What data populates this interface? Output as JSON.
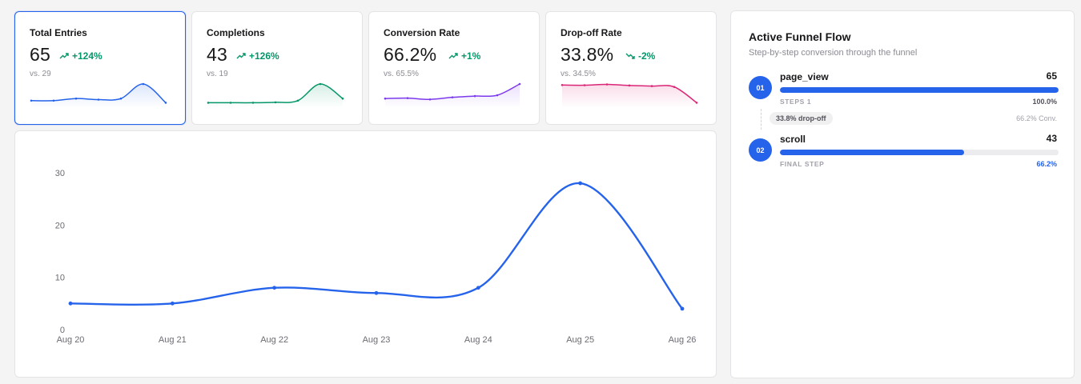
{
  "kpis": [
    {
      "label": "Total Entries",
      "value": "65",
      "delta": "+124%",
      "trend": "up",
      "compare": "vs. 29",
      "color": "#2563eb",
      "delta_color": "#059669",
      "active": true,
      "spark": [
        2,
        2,
        3,
        2.5,
        3,
        10,
        1
      ]
    },
    {
      "label": "Completions",
      "value": "43",
      "delta": "+126%",
      "trend": "up",
      "compare": "vs. 19",
      "color": "#059669",
      "delta_color": "#059669",
      "active": false,
      "spark": [
        1,
        1,
        1,
        1.2,
        2,
        10,
        3
      ]
    },
    {
      "label": "Conversion Rate",
      "value": "66.2%",
      "delta": "+1%",
      "trend": "up",
      "compare": "vs. 65.5%",
      "color": "#7c3aed",
      "delta_color": "#059669",
      "active": false,
      "spark": [
        3,
        3.2,
        2.6,
        3.6,
        4.2,
        4.6,
        10
      ]
    },
    {
      "label": "Drop-off Rate",
      "value": "33.8%",
      "delta": "-2%",
      "trend": "down",
      "compare": "vs. 34.5%",
      "color": "#db2777",
      "delta_color": "#059669",
      "active": false,
      "spark": [
        9.5,
        9.4,
        9.8,
        9.3,
        9,
        8.6,
        1
      ]
    }
  ],
  "chart_data": {
    "type": "line",
    "x": [
      "Aug 20",
      "Aug 21",
      "Aug 22",
      "Aug 23",
      "Aug 24",
      "Aug 25",
      "Aug 26"
    ],
    "series": [
      {
        "values": [
          5,
          5,
          8,
          7,
          8,
          28,
          4
        ],
        "color": "#2563eb"
      }
    ],
    "ylim": [
      0,
      30
    ],
    "yticks": [
      0,
      10,
      20,
      30
    ],
    "title": "",
    "xlabel": "",
    "ylabel": "",
    "grid": false
  },
  "funnel": {
    "title": "Active Funnel Flow",
    "subtitle": "Step-by-step conversion through the funnel",
    "steps": [
      {
        "badge": "01",
        "name": "page_view",
        "count": "65",
        "caption": "STEPS 1",
        "percent_label": "100.0%",
        "fill": 1.0
      },
      {
        "badge": "02",
        "name": "scroll",
        "count": "43",
        "caption": "FINAL STEP",
        "percent_label": "66.2%",
        "fill": 0.662
      }
    ],
    "dropoff_label": "33.8% drop-off",
    "conversion_label": "66.2% Conv.",
    "accent": "#2563eb"
  }
}
